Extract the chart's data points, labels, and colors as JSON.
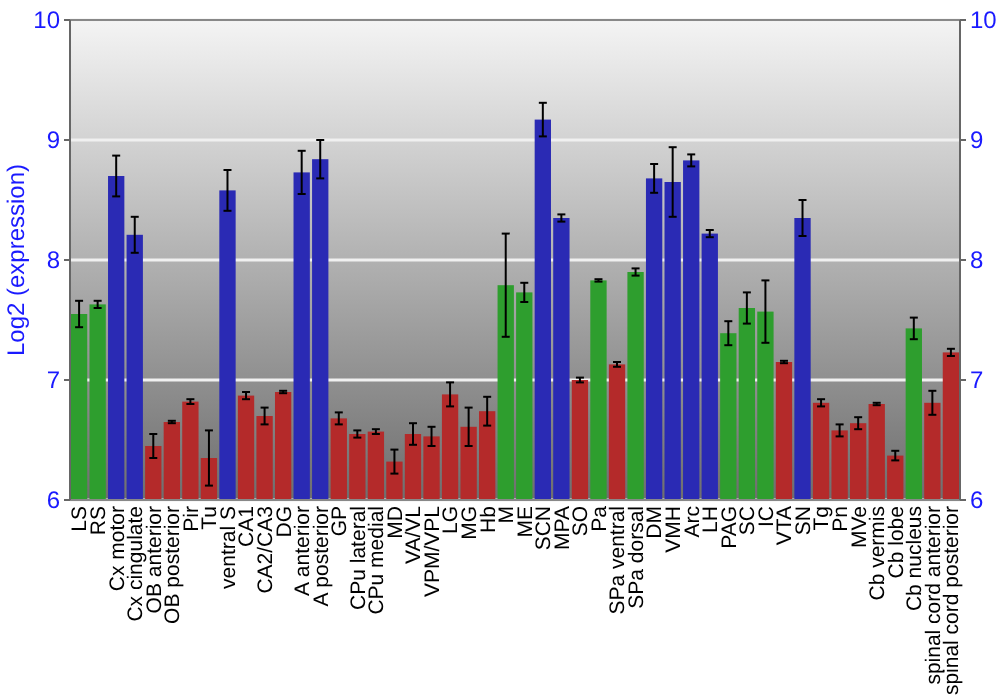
{
  "chart_data": {
    "type": "bar",
    "ylabel": "Log2 (expression)",
    "categories": [
      "LS",
      "RS",
      "Cx motor",
      "Cx cingulate",
      "OB anterior",
      "OB posterior",
      "Pir",
      "Tu",
      "ventral S",
      "CA1",
      "CA2/CA3",
      "DG",
      "A anterior",
      "A posterior",
      "GP",
      "CPu lateral",
      "CPu medial",
      "MD",
      "VA/VL",
      "VPM/VPL",
      "LG",
      "MG",
      "Hb",
      "M",
      "ME",
      "SCN",
      "MPA",
      "SO",
      "Pa",
      "SPa ventral",
      "SPa dorsal",
      "DM",
      "VMH",
      "Arc",
      "LH",
      "PAG",
      "SC",
      "IC",
      "VTA",
      "SN",
      "Tg",
      "Pn",
      "MVe",
      "Cb vermis",
      "Cb lobe",
      "Cb nucleus",
      "spinal cord anterior",
      "spinal cord posterior"
    ],
    "values": [
      7.55,
      7.63,
      8.7,
      8.21,
      6.45,
      6.65,
      6.82,
      6.35,
      8.58,
      6.87,
      6.7,
      6.9,
      8.73,
      8.84,
      6.68,
      6.55,
      6.57,
      6.32,
      6.55,
      6.53,
      6.88,
      6.61,
      6.74,
      7.79,
      7.73,
      9.17,
      8.35,
      7.0,
      7.83,
      7.13,
      7.9,
      8.68,
      8.65,
      8.83,
      8.22,
      7.39,
      7.6,
      7.57,
      7.15,
      8.35,
      6.81,
      6.58,
      6.64,
      6.8,
      6.37,
      7.43,
      6.81,
      7.23
    ],
    "errors": [
      0.11,
      0.03,
      0.17,
      0.15,
      0.1,
      0.01,
      0.02,
      0.23,
      0.17,
      0.03,
      0.07,
      0.01,
      0.18,
      0.16,
      0.05,
      0.03,
      0.02,
      0.1,
      0.09,
      0.08,
      0.1,
      0.16,
      0.12,
      0.43,
      0.08,
      0.14,
      0.03,
      0.02,
      0.01,
      0.02,
      0.03,
      0.12,
      0.29,
      0.05,
      0.03,
      0.1,
      0.13,
      0.26,
      0.01,
      0.15,
      0.03,
      0.05,
      0.05,
      0.01,
      0.04,
      0.09,
      0.1,
      0.03
    ],
    "colors": [
      "#2e9e2e",
      "#2e9e2e",
      "#2a2ab4",
      "#2a2ab4",
      "#b42a2a",
      "#b42a2a",
      "#b42a2a",
      "#b42a2a",
      "#2a2ab4",
      "#b42a2a",
      "#b42a2a",
      "#b42a2a",
      "#2a2ab4",
      "#2a2ab4",
      "#b42a2a",
      "#b42a2a",
      "#b42a2a",
      "#b42a2a",
      "#b42a2a",
      "#b42a2a",
      "#b42a2a",
      "#b42a2a",
      "#b42a2a",
      "#2e9e2e",
      "#2e9e2e",
      "#2a2ab4",
      "#2a2ab4",
      "#b42a2a",
      "#2e9e2e",
      "#b42a2a",
      "#2e9e2e",
      "#2a2ab4",
      "#2a2ab4",
      "#2a2ab4",
      "#2a2ab4",
      "#2e9e2e",
      "#2e9e2e",
      "#2e9e2e",
      "#b42a2a",
      "#2a2ab4",
      "#b42a2a",
      "#b42a2a",
      "#b42a2a",
      "#b42a2a",
      "#b42a2a",
      "#2e9e2e",
      "#b42a2a",
      "#b42a2a"
    ],
    "ylim": [
      6,
      10
    ],
    "yticks": [
      6,
      7,
      8,
      9,
      10
    ],
    "y2lim": [
      6,
      10
    ],
    "y2ticks": [
      6,
      7,
      8,
      9,
      10
    ],
    "grid": "y"
  }
}
